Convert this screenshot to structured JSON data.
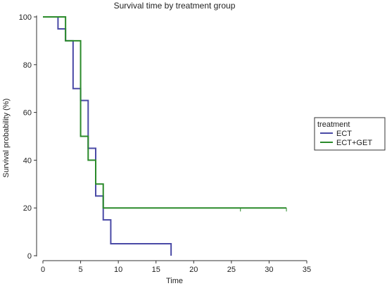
{
  "chart_data": {
    "type": "line",
    "step": true,
    "title": "Survival time by treatment group",
    "xlabel": "Time",
    "ylabel": "Survival probability (%)",
    "xlim": [
      0,
      35
    ],
    "ylim": [
      0,
      100
    ],
    "xticks": [
      0,
      5,
      10,
      15,
      20,
      25,
      30,
      35
    ],
    "yticks": [
      0,
      20,
      40,
      60,
      80,
      100
    ],
    "grid": false,
    "legend": {
      "title": "treatment",
      "placement": "right"
    },
    "series": [
      {
        "name": "ECT",
        "color": "#4a4aa6",
        "times": [
          0,
          2,
          3,
          4,
          5,
          6,
          7,
          8,
          9,
          17
        ],
        "values": [
          100,
          95,
          90,
          70,
          65,
          45,
          25,
          15,
          5,
          0
        ],
        "censored": []
      },
      {
        "name": "ECT+GET",
        "color": "#2a8a2a",
        "times": [
          0,
          3,
          5,
          6,
          7,
          8,
          32.3
        ],
        "values": [
          100,
          90,
          50,
          40,
          30,
          20,
          20
        ],
        "censored": [
          26.2,
          32.3
        ]
      }
    ]
  }
}
